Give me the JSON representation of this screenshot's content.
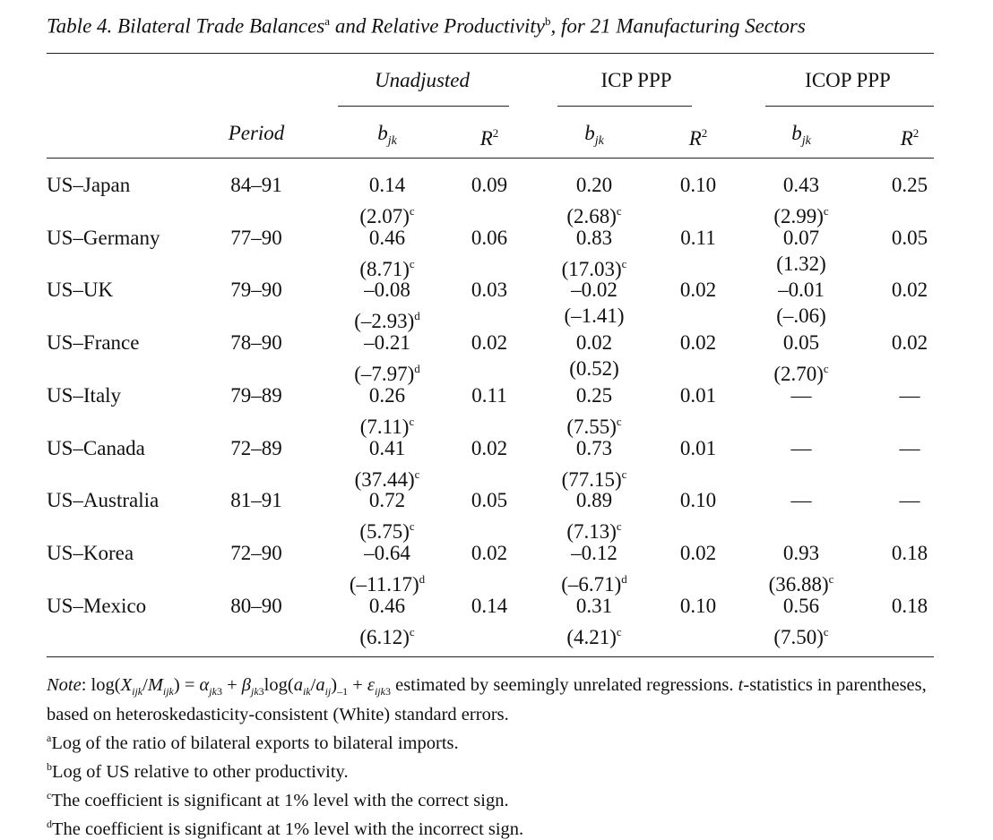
{
  "caption": {
    "label": "Table 4.",
    "text_before": "Bilateral Trade Balances",
    "mark_a": "a",
    "text_middle": " and Relative Productivity",
    "mark_b": "b",
    "text_after": ", for 21 Manufacturing Sectors"
  },
  "groups": {
    "unadjusted": "Unadjusted",
    "icp": "ICP PPP",
    "icop": "ICOP PPP"
  },
  "columns": {
    "period": "Period",
    "b": "b",
    "b_sub": "jk",
    "r": "R",
    "r_sup": "2"
  },
  "rows": [
    {
      "pair": "US–Japan",
      "period": "84–91",
      "u_b": "0.14",
      "u_t": "(2.07)",
      "u_m": "c",
      "u_r": "0.09",
      "i_b": "0.20",
      "i_t": "(2.68)",
      "i_m": "c",
      "i_r": "0.10",
      "o_b": "0.43",
      "o_t": "(2.99)",
      "o_m": "c",
      "o_r": "0.25"
    },
    {
      "pair": "US–Germany",
      "period": "77–90",
      "u_b": "0.46",
      "u_t": "(8.71)",
      "u_m": "c",
      "u_r": "0.06",
      "i_b": "0.83",
      "i_t": "(17.03)",
      "i_m": "c",
      "i_r": "0.11",
      "o_b": "0.07",
      "o_t": "(1.32)",
      "o_m": "",
      "o_r": "0.05"
    },
    {
      "pair": "US–UK",
      "period": "79–90",
      "u_b": "–0.08",
      "u_t": "(–2.93)",
      "u_m": "d",
      "u_r": "0.03",
      "i_b": "–0.02",
      "i_t": "(–1.41)",
      "i_m": "",
      "i_r": "0.02",
      "o_b": "–0.01",
      "o_t": "(–.06)",
      "o_m": "",
      "o_r": "0.02"
    },
    {
      "pair": "US–France",
      "period": "78–90",
      "u_b": "–0.21",
      "u_t": "(–7.97)",
      "u_m": "d",
      "u_r": "0.02",
      "i_b": "0.02",
      "i_t": "(0.52)",
      "i_m": "",
      "i_r": "0.02",
      "o_b": "0.05",
      "o_t": "(2.70)",
      "o_m": "c",
      "o_r": "0.02"
    },
    {
      "pair": "US–Italy",
      "period": "79–89",
      "u_b": "0.26",
      "u_t": "(7.11)",
      "u_m": "c",
      "u_r": "0.11",
      "i_b": "0.25",
      "i_t": "(7.55)",
      "i_m": "c",
      "i_r": "0.01",
      "o_b": "—",
      "o_t": "",
      "o_m": "",
      "o_r": "—"
    },
    {
      "pair": "US–Canada",
      "period": "72–89",
      "u_b": "0.41",
      "u_t": "(37.44)",
      "u_m": "c",
      "u_r": "0.02",
      "i_b": "0.73",
      "i_t": "(77.15)",
      "i_m": "c",
      "i_r": "0.01",
      "o_b": "—",
      "o_t": "",
      "o_m": "",
      "o_r": "—"
    },
    {
      "pair": "US–Australia",
      "period": "81–91",
      "u_b": "0.72",
      "u_t": "(5.75)",
      "u_m": "c",
      "u_r": "0.05",
      "i_b": "0.89",
      "i_t": "(7.13)",
      "i_m": "c",
      "i_r": "0.10",
      "o_b": "—",
      "o_t": "",
      "o_m": "",
      "o_r": "—"
    },
    {
      "pair": "US–Korea",
      "period": "72–90",
      "u_b": "–0.64",
      "u_t": "(–11.17)",
      "u_m": "d",
      "u_r": "0.02",
      "i_b": "–0.12",
      "i_t": "(–6.71)",
      "i_m": "d",
      "i_r": "0.02",
      "o_b": "0.93",
      "o_t": "(36.88)",
      "o_m": "c",
      "o_r": "0.18"
    },
    {
      "pair": "US–Mexico",
      "period": "80–90",
      "u_b": "0.46",
      "u_t": "(6.12)",
      "u_m": "c",
      "u_r": "0.14",
      "i_b": "0.31",
      "i_t": "(4.21)",
      "i_m": "c",
      "i_r": "0.10",
      "o_b": "0.56",
      "o_t": "(7.50)",
      "o_m": "c",
      "o_r": "0.18"
    }
  ],
  "notes": {
    "note_label": "Note",
    "note_text": "log(X_ijk/M_ijk) = α_jk3 + β_jk3 log(a_ik/a_ij)_–1 + ε_ijk3 estimated by seemingly unrelated regressions. t-statistics in parentheses, based on heteroskedasticity-consistent (White) standard errors.",
    "a_mark": "a",
    "a_text": "Log of the ratio of bilateral exports to bilateral imports.",
    "b_mark": "b",
    "b_text": "Log of US relative to other productivity.",
    "c_mark": "c",
    "c_text": "The coefficient is significant at 1% level with the correct sign.",
    "d_mark": "d",
    "d_text": "The coefficient is significant at 1% level with the incorrect sign."
  }
}
